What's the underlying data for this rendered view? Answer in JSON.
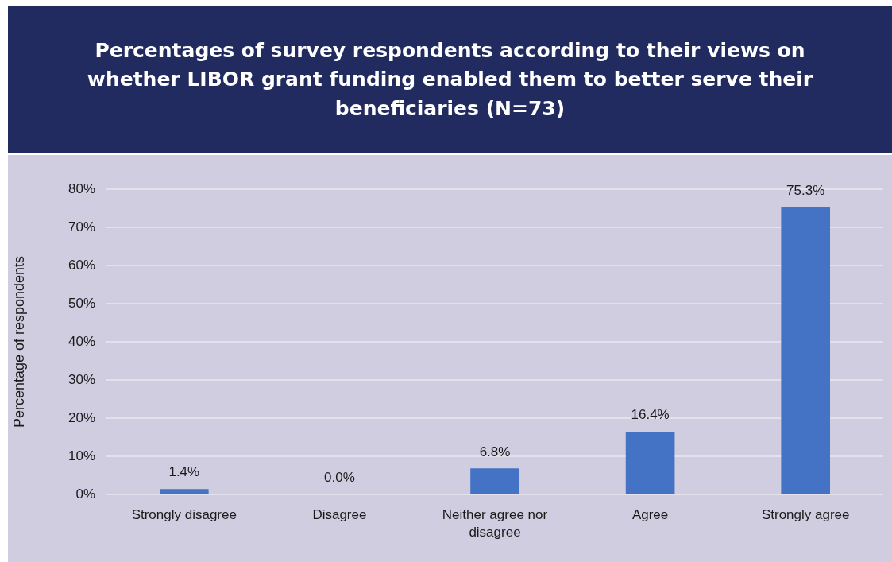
{
  "chart_data": {
    "type": "bar",
    "title": "Percentages of survey respondents according to their views on whether LIBOR grant funding enabled them to better serve their beneficiaries (N=73)",
    "ylabel": "Percentage of respondents",
    "categories": [
      "Strongly disagree",
      "Disagree",
      "Neither agree nor disagree",
      "Agree",
      "Strongly agree"
    ],
    "values": [
      1.4,
      0.0,
      6.8,
      16.4,
      75.3
    ],
    "value_labels": [
      "1.4%",
      "0.0%",
      "6.8%",
      "16.4%",
      "75.3%"
    ],
    "color": "#4472c4",
    "ylim": [
      0,
      80
    ],
    "yticks": [
      {
        "value": 0,
        "label": "0%"
      },
      {
        "value": 10,
        "label": "10%"
      },
      {
        "value": 20,
        "label": "20%"
      },
      {
        "value": 30,
        "label": "30%"
      },
      {
        "value": 40,
        "label": "40%"
      },
      {
        "value": 50,
        "label": "50%"
      },
      {
        "value": 60,
        "label": "60%"
      },
      {
        "value": 70,
        "label": "70%"
      },
      {
        "value": 80,
        "label": "80%"
      }
    ],
    "grid": "y"
  }
}
